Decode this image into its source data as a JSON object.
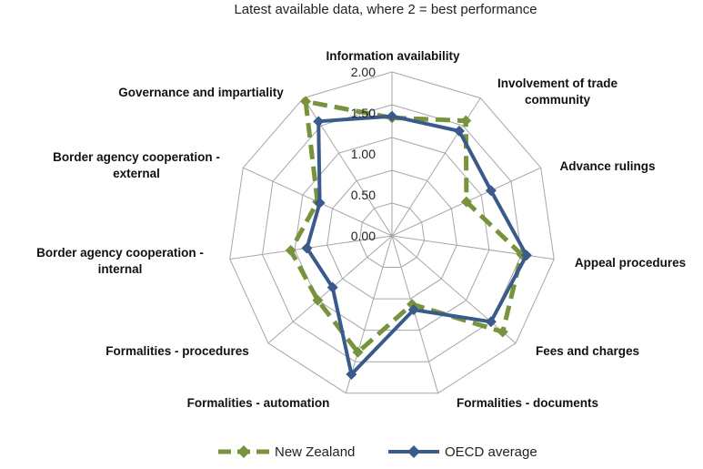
{
  "chart_data": {
    "type": "radar",
    "subtitle": "Latest available data, where 2 = best performance",
    "axes": [
      "Information availability",
      "Involvement of trade community",
      "Advance rulings",
      "Appeal procedures",
      "Fees and charges",
      "Formalities - documents",
      "Formalities - automation",
      "Formalities - procedures",
      "Border agency cooperation - internal",
      "Border agency cooperation - external",
      "Governance and impartiality"
    ],
    "range": [
      0,
      2
    ],
    "ticks": [
      "0.00",
      "0.50",
      "1.00",
      "1.50",
      "2.00"
    ],
    "gridlines": 5,
    "legend_position": "bottom",
    "series": [
      {
        "name": "New Zealand",
        "color": "#77933c",
        "dash": true,
        "marker": "diamond",
        "values": [
          1.44,
          1.67,
          1.0,
          1.6,
          1.79,
          0.87,
          1.48,
          1.2,
          1.25,
          1.0,
          1.95
        ]
      },
      {
        "name": "OECD average",
        "color": "#3a5a8c",
        "dash": false,
        "marker": "diamond",
        "values": [
          1.46,
          1.52,
          1.33,
          1.66,
          1.6,
          0.94,
          1.76,
          0.96,
          1.05,
          0.97,
          1.66
        ]
      }
    ]
  }
}
